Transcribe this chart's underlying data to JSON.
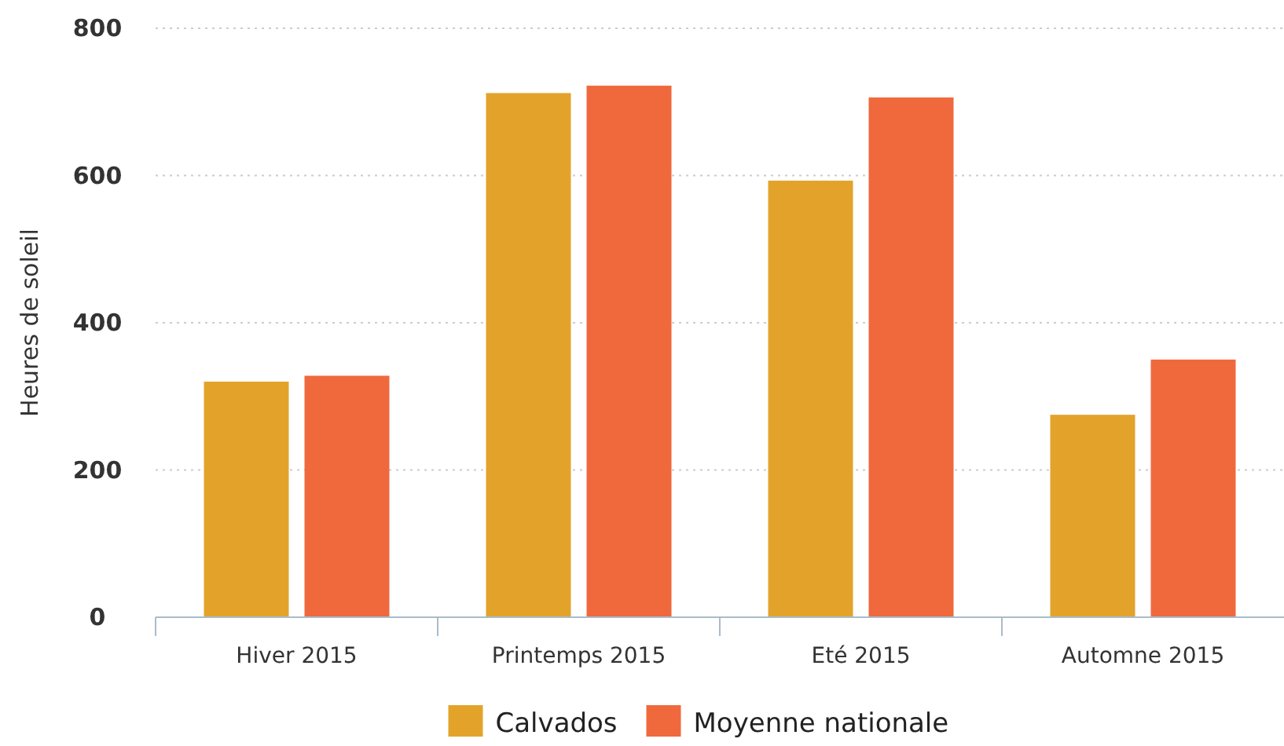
{
  "chart_data": {
    "type": "bar",
    "ylabel": "Heures de soleil",
    "categories": [
      "Hiver 2015",
      "Printemps 2015",
      "Eté 2015",
      "Automne 2015"
    ],
    "series": [
      {
        "name": "Calvados",
        "color": "#e3a32a",
        "values": [
          320,
          712,
          593,
          275
        ]
      },
      {
        "name": "Moyenne nationale",
        "color": "#ef693d",
        "values": [
          328,
          722,
          706,
          350
        ]
      }
    ],
    "ylim": [
      0,
      800
    ],
    "yticks": [
      0,
      200,
      400,
      600,
      800
    ],
    "grid": "y",
    "legend": "bottom"
  }
}
